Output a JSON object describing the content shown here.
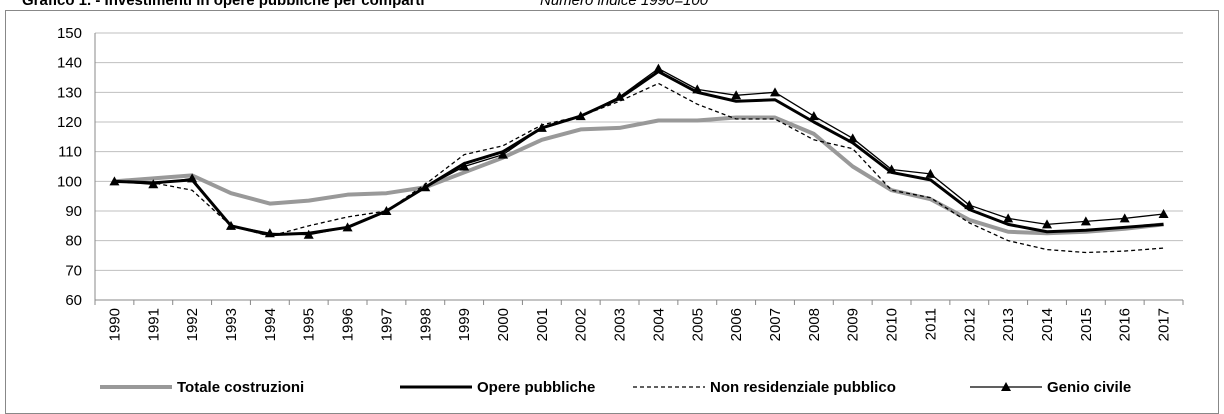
{
  "chart_data": {
    "type": "line",
    "title": "Grafico 1. - Investimenti in opere pubbliche per comparti",
    "subtitle": "Numero indice 1990=100",
    "categories": [
      "1990",
      "1991",
      "1992",
      "1993",
      "1994",
      "1995",
      "1996",
      "1997",
      "1998",
      "1999",
      "2000",
      "2001",
      "2002",
      "2003",
      "2004",
      "2005",
      "2006",
      "2007",
      "2008",
      "2009",
      "2010",
      "2011",
      "2012",
      "2013",
      "2014",
      "2015",
      "2016",
      "2017"
    ],
    "series": [
      {
        "name": "Totale costruzioni",
        "color": "#999999",
        "values": [
          100,
          101,
          102,
          96,
          92.5,
          93.5,
          95.5,
          96,
          98,
          103,
          108,
          114,
          117.5,
          118,
          120.5,
          120.5,
          121.5,
          121.5,
          116,
          105,
          97,
          94,
          87,
          83,
          82.5,
          83,
          84,
          85.5
        ]
      },
      {
        "name": "Opere pubbliche",
        "color": "#000000",
        "values": [
          100,
          99.5,
          100.5,
          85,
          82,
          82.5,
          84.5,
          90,
          98,
          106,
          110,
          118,
          122,
          128,
          137,
          130,
          127,
          127.5,
          120,
          113,
          103,
          100.5,
          90.5,
          85.5,
          83,
          83.5,
          84.5,
          85.5
        ]
      },
      {
        "name": "Non residenziale pubblico",
        "color": "#000000",
        "values": [
          100,
          99.5,
          97,
          85,
          81.5,
          85,
          88,
          90,
          99,
          109,
          112,
          119,
          122,
          127,
          133,
          126,
          121,
          121,
          114,
          111,
          97,
          94.5,
          86,
          80,
          77,
          76,
          76.5,
          77.5
        ]
      },
      {
        "name": "Genio civile",
        "color": "#000000",
        "values": [
          100,
          99,
          101,
          85,
          82.5,
          82,
          84.5,
          90,
          98,
          105,
          109,
          118,
          122,
          128.5,
          138,
          131,
          129,
          130,
          122,
          114.5,
          104,
          102.5,
          92,
          87.5,
          85.5,
          86.5,
          87.5,
          89
        ]
      }
    ],
    "ylim": [
      60,
      150
    ],
    "yticks": [
      60,
      70,
      80,
      90,
      100,
      110,
      120,
      130,
      140,
      150
    ],
    "grid": true,
    "legend": "bottom"
  }
}
